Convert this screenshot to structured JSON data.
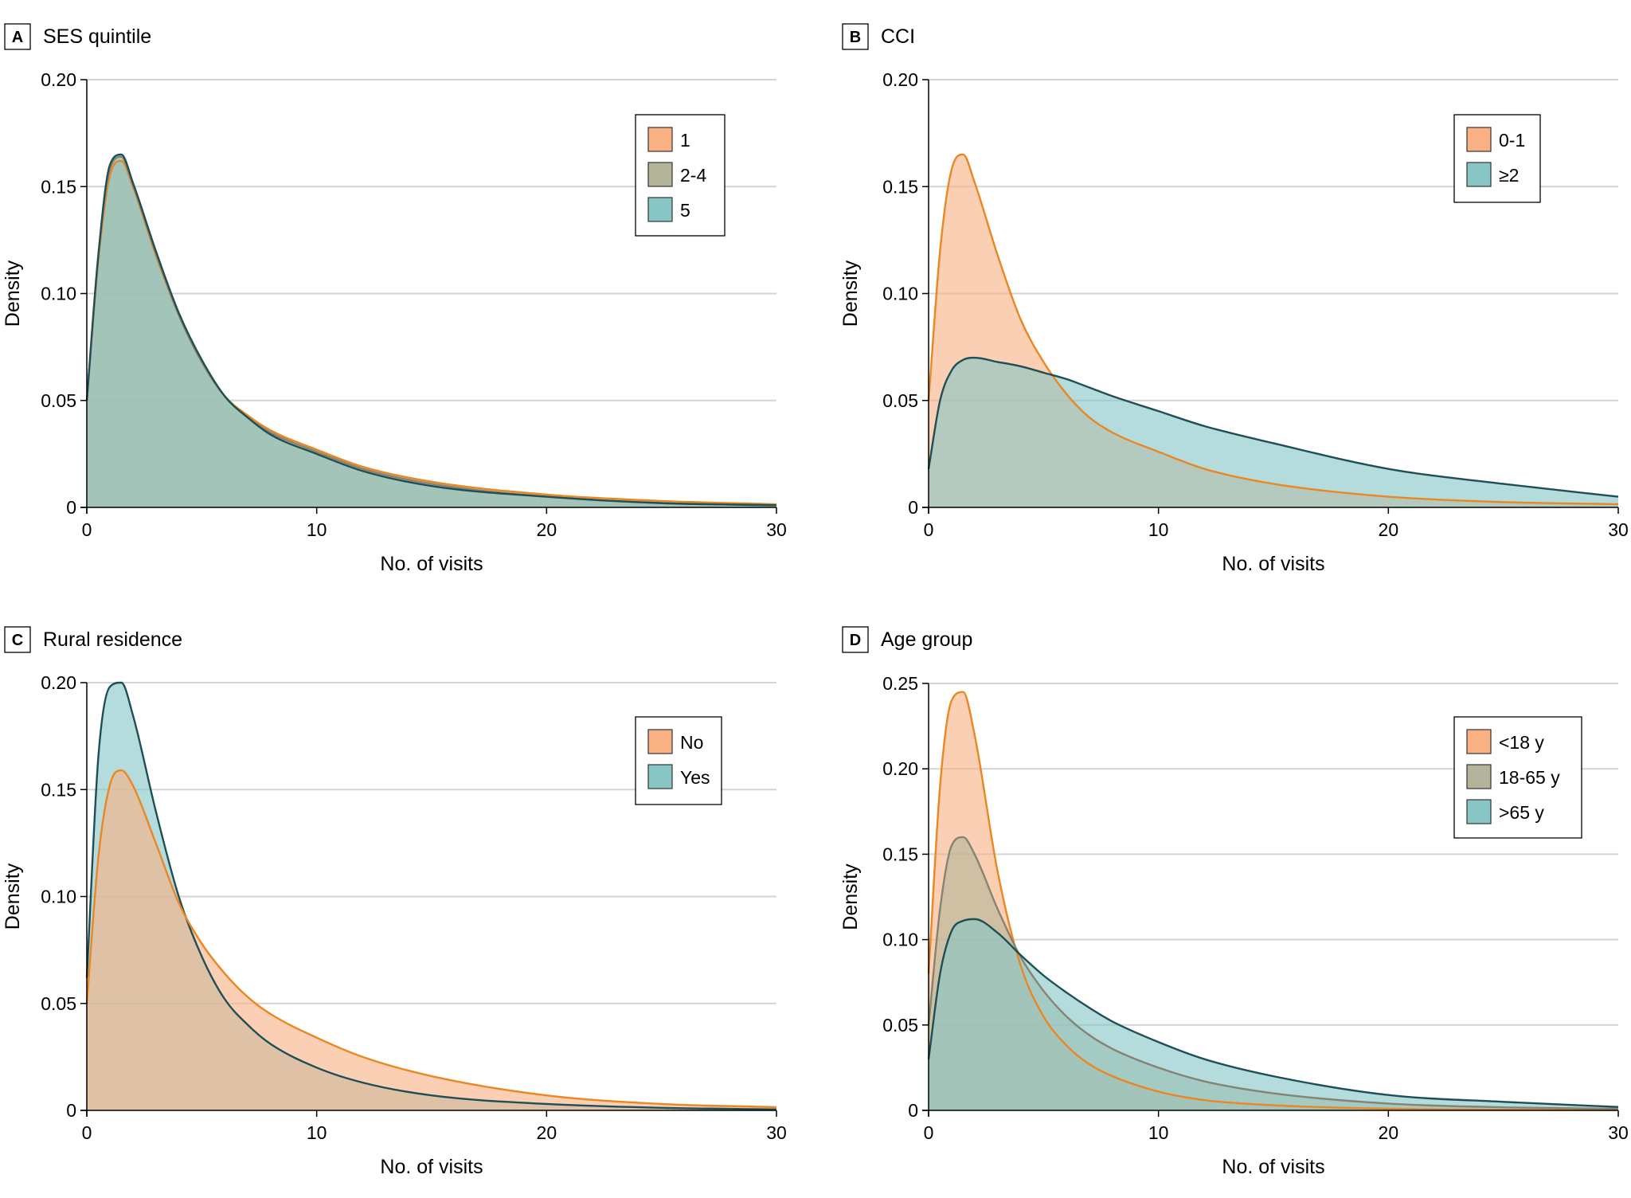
{
  "chart_data": [
    {
      "type": "area",
      "panel": "A",
      "title": "SES quintile",
      "xlabel": "No. of visits",
      "ylabel": "Density",
      "xlim": [
        0,
        30
      ],
      "ylim": [
        0,
        0.2
      ],
      "xticks": [
        0,
        10,
        20,
        30
      ],
      "xtick_labels": [
        "0",
        "10",
        "20",
        "30"
      ],
      "yticks": [
        0,
        0.05,
        0.1,
        0.15,
        0.2
      ],
      "ytick_labels": [
        "0",
        "0.05",
        "0.10",
        "0.15",
        "0.20"
      ],
      "legend_position": "top-right",
      "x": [
        0,
        0.5,
        1,
        1.5,
        2,
        3,
        4,
        5,
        6,
        7,
        8,
        10,
        12,
        15,
        20,
        25,
        30
      ],
      "series": [
        {
          "name": "1",
          "fill": "#f9b184",
          "line": "#ea8722",
          "values": [
            0.05,
            0.115,
            0.155,
            0.162,
            0.15,
            0.118,
            0.09,
            0.068,
            0.052,
            0.043,
            0.036,
            0.027,
            0.019,
            0.012,
            0.006,
            0.003,
            0.0015
          ]
        },
        {
          "name": "2-4",
          "fill": "#b3b49a",
          "line": "#858472",
          "values": [
            0.05,
            0.117,
            0.158,
            0.164,
            0.151,
            0.119,
            0.09,
            0.068,
            0.052,
            0.042,
            0.035,
            0.026,
            0.018,
            0.011,
            0.005,
            0.002,
            0.001
          ]
        },
        {
          "name": "5",
          "fill": "#88c6c6",
          "line": "#1f4f56",
          "values": [
            0.05,
            0.118,
            0.16,
            0.165,
            0.152,
            0.12,
            0.091,
            0.069,
            0.052,
            0.042,
            0.034,
            0.025,
            0.017,
            0.01,
            0.005,
            0.002,
            0.001
          ]
        }
      ]
    },
    {
      "type": "area",
      "panel": "B",
      "title": "CCI",
      "xlabel": "No. of visits",
      "ylabel": "Density",
      "xlim": [
        0,
        30
      ],
      "ylim": [
        0,
        0.2
      ],
      "xticks": [
        0,
        10,
        20,
        30
      ],
      "xtick_labels": [
        "0",
        "10",
        "20",
        "30"
      ],
      "yticks": [
        0,
        0.05,
        0.1,
        0.15,
        0.2
      ],
      "ytick_labels": [
        "0",
        "0.05",
        "0.10",
        "0.15",
        "0.20"
      ],
      "legend_position": "top-right",
      "x": [
        0,
        0.5,
        1,
        1.5,
        2,
        3,
        4,
        5,
        6,
        7,
        8,
        10,
        12,
        15,
        20,
        25,
        30
      ],
      "series": [
        {
          "name": "0-1",
          "fill": "#f9b184",
          "line": "#ea8722",
          "values": [
            0.05,
            0.12,
            0.158,
            0.165,
            0.152,
            0.118,
            0.088,
            0.068,
            0.053,
            0.042,
            0.035,
            0.026,
            0.018,
            0.011,
            0.005,
            0.0025,
            0.0015
          ]
        },
        {
          "name": "≥2",
          "fill": "#88c6c6",
          "line": "#1f4f56",
          "values": [
            0.018,
            0.05,
            0.064,
            0.069,
            0.07,
            0.068,
            0.066,
            0.063,
            0.06,
            0.056,
            0.052,
            0.045,
            0.038,
            0.03,
            0.018,
            0.011,
            0.005
          ]
        }
      ]
    },
    {
      "type": "area",
      "panel": "C",
      "title": "Rural residence",
      "xlabel": "No. of visits",
      "ylabel": "Density",
      "xlim": [
        0,
        30
      ],
      "ylim": [
        0,
        0.2
      ],
      "xticks": [
        0,
        10,
        20,
        30
      ],
      "xtick_labels": [
        "0",
        "10",
        "20",
        "30"
      ],
      "yticks": [
        0,
        0.05,
        0.1,
        0.15,
        0.2
      ],
      "ytick_labels": [
        "0",
        "0.05",
        "0.10",
        "0.15",
        "0.20"
      ],
      "legend_position": "top-right",
      "x": [
        0,
        0.5,
        1,
        1.5,
        2,
        3,
        4,
        5,
        6,
        7,
        8,
        10,
        12,
        15,
        20,
        25,
        30
      ],
      "series": [
        {
          "name": "Yes",
          "fill": "#88c6c6",
          "line": "#1f4f56",
          "values": [
            0.062,
            0.165,
            0.198,
            0.2,
            0.185,
            0.14,
            0.1,
            0.072,
            0.052,
            0.04,
            0.031,
            0.02,
            0.013,
            0.007,
            0.003,
            0.0012,
            0.0005
          ]
        },
        {
          "name": "No",
          "fill": "#f9b184",
          "line": "#ea8722",
          "values": [
            0.05,
            0.118,
            0.152,
            0.159,
            0.152,
            0.125,
            0.097,
            0.078,
            0.064,
            0.053,
            0.045,
            0.034,
            0.025,
            0.016,
            0.007,
            0.003,
            0.0015
          ]
        }
      ]
    },
    {
      "type": "area",
      "panel": "D",
      "title": "Age group",
      "xlabel": "No. of visits",
      "ylabel": "Density",
      "xlim": [
        0,
        30
      ],
      "ylim": [
        0,
        0.25
      ],
      "xticks": [
        0,
        10,
        20,
        30
      ],
      "xtick_labels": [
        "0",
        "10",
        "20",
        "30"
      ],
      "yticks": [
        0,
        0.05,
        0.1,
        0.15,
        0.2,
        0.25
      ],
      "ytick_labels": [
        "0",
        "0.05",
        "0.10",
        "0.15",
        "0.20",
        "0.25"
      ],
      "legend_position": "top-right",
      "x": [
        0,
        0.5,
        1,
        1.5,
        2,
        3,
        4,
        5,
        6,
        7,
        8,
        10,
        12,
        15,
        20,
        25,
        30
      ],
      "series": [
        {
          "name": "<18 y",
          "fill": "#f9b184",
          "line": "#ea8722",
          "values": [
            0.08,
            0.19,
            0.24,
            0.245,
            0.22,
            0.14,
            0.085,
            0.055,
            0.038,
            0.027,
            0.02,
            0.011,
            0.006,
            0.003,
            0.001,
            0.0004,
            0.0002
          ]
        },
        {
          "name": "18-65 y",
          "fill": "#b3b49a",
          "line": "#858472",
          "values": [
            0.05,
            0.118,
            0.155,
            0.16,
            0.15,
            0.118,
            0.09,
            0.07,
            0.055,
            0.044,
            0.036,
            0.025,
            0.017,
            0.01,
            0.004,
            0.0018,
            0.001
          ]
        },
        {
          "name": ">65 y",
          "fill": "#88c6c6",
          "line": "#1f4f56",
          "values": [
            0.03,
            0.08,
            0.105,
            0.111,
            0.112,
            0.104,
            0.091,
            0.079,
            0.069,
            0.06,
            0.052,
            0.04,
            0.03,
            0.02,
            0.009,
            0.005,
            0.002
          ]
        }
      ]
    }
  ]
}
